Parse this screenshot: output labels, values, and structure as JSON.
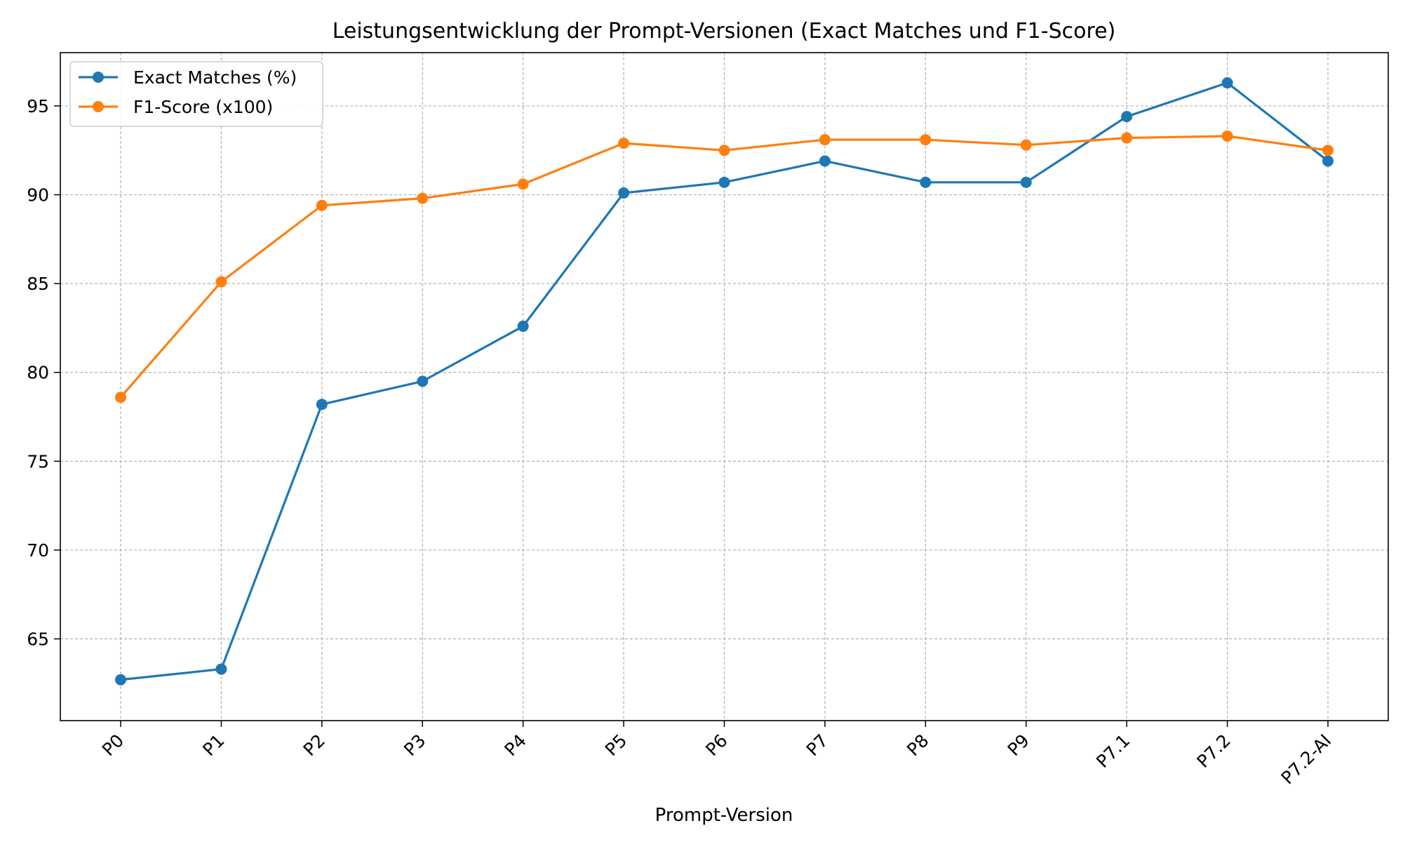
{
  "chart_data": {
    "type": "line",
    "title": "Leistungsentwicklung der Prompt-Versionen (Exact Matches und F1-Score)",
    "xlabel": "Prompt-Version",
    "ylabel": "",
    "categories": [
      "P0",
      "P1",
      "P2",
      "P3",
      "P4",
      "P5",
      "P6",
      "P7",
      "P8",
      "P9",
      "P7.1",
      "P7.2",
      "P7.2-AI"
    ],
    "ylim": [
      60.4,
      98.0
    ],
    "yticks": [
      65,
      70,
      75,
      80,
      85,
      90,
      95
    ],
    "grid": true,
    "legend_position": "top-left",
    "series": [
      {
        "name": "Exact Matches (%)",
        "color": "#1f77b4",
        "values": [
          62.7,
          63.3,
          78.2,
          79.5,
          82.6,
          90.1,
          90.7,
          91.9,
          90.7,
          90.7,
          94.4,
          96.3,
          91.9
        ]
      },
      {
        "name": "F1-Score (x100)",
        "color": "#ff7f0e",
        "values": [
          78.6,
          85.1,
          89.4,
          89.8,
          90.6,
          92.9,
          92.5,
          93.1,
          93.1,
          92.8,
          93.2,
          93.3,
          92.5
        ]
      }
    ]
  }
}
